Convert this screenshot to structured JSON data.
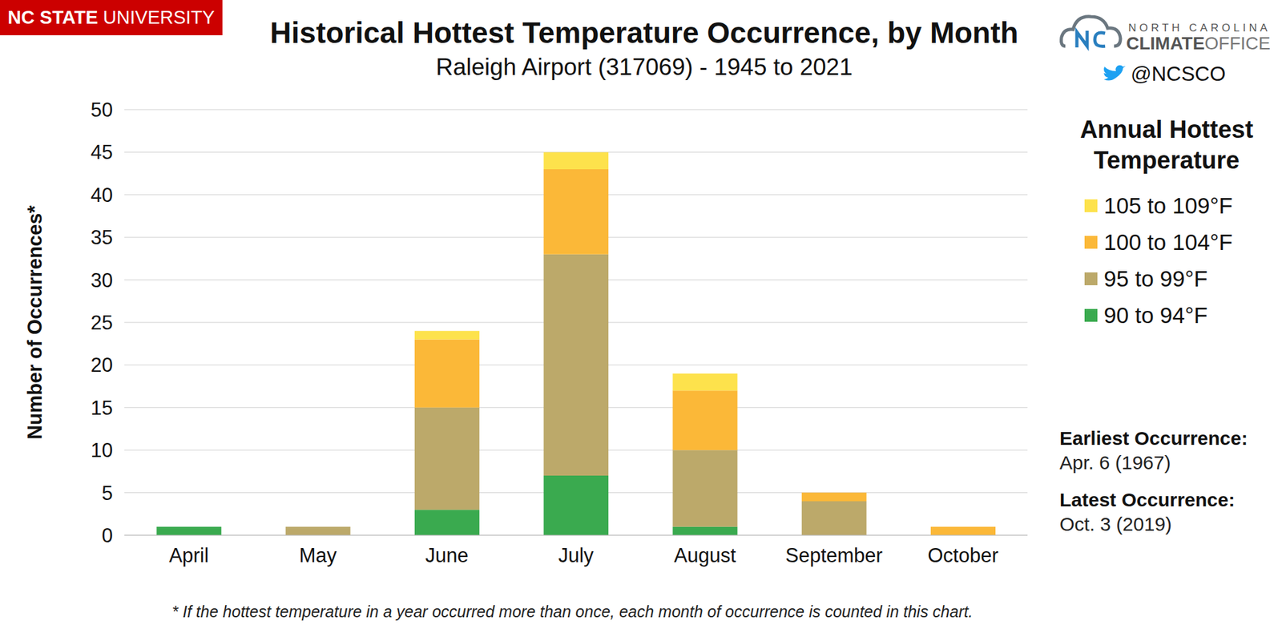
{
  "chart_data": {
    "type": "bar",
    "title": "Historical Hottest Temperature Occurrence, by Month",
    "subtitle": "Raleigh Airport (317069) - 1945 to 2021",
    "y_label": "Number of Occurrences*",
    "categories": [
      "April",
      "May",
      "June",
      "July",
      "August",
      "September",
      "October"
    ],
    "series": [
      {
        "name": "90 to 94°F",
        "color": "#3aaa4f",
        "values": [
          1,
          0,
          3,
          7,
          1,
          0,
          0
        ]
      },
      {
        "name": "95 to 99°F",
        "color": "#bca96a",
        "values": [
          0,
          1,
          12,
          26,
          9,
          4,
          0
        ]
      },
      {
        "name": "100 to 104°F",
        "color": "#fbb838",
        "values": [
          0,
          0,
          8,
          10,
          7,
          1,
          1
        ]
      },
      {
        "name": "105 to 109°F",
        "color": "#fde24c",
        "values": [
          0,
          0,
          1,
          2,
          2,
          0,
          0
        ]
      }
    ],
    "ylim": [
      0,
      50
    ],
    "yticks": [
      0,
      5,
      10,
      15,
      20,
      25,
      30,
      35,
      40,
      45,
      50
    ],
    "grid": true,
    "stacked": true,
    "legend": "right",
    "legend_title": "Annual Hottest Temperature",
    "notes": [
      {
        "label": "Earliest Occurrence:",
        "text": "Apr. 6 (1967)"
      },
      {
        "label": "Latest Occurrence:",
        "text": "Oct. 3 (2019)"
      }
    ],
    "footnote": "* If the hottest temperature in a year occurred more than once, each month of occurrence is counted in this chart.",
    "logos": {
      "left": [
        "NC STATE",
        "UNIVERSITY"
      ],
      "right": [
        "NORTH CAROLINA",
        "CLIMATE",
        "OFFICE"
      ],
      "handle": "@NCSCO"
    }
  }
}
